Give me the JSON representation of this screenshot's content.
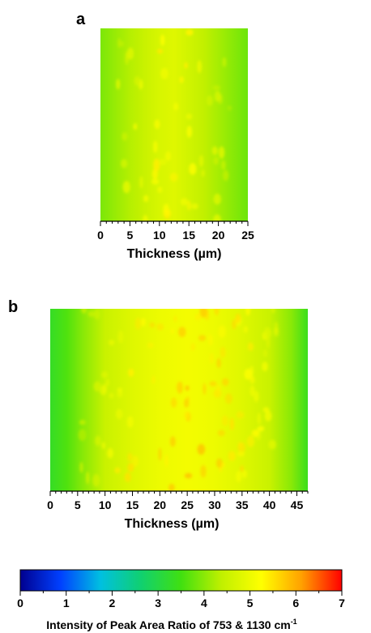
{
  "chart_data": [
    {
      "type": "heatmap",
      "panel_label": "a",
      "xlabel": "Thickness (µm)",
      "xlim": [
        0,
        25
      ],
      "x_ticks": [
        0,
        5,
        10,
        15,
        20,
        25
      ],
      "x_tick_labels": [
        "0",
        "5",
        "10",
        "15",
        "20",
        "25"
      ],
      "z_profile_x": [
        0,
        2.5,
        5,
        7.5,
        10,
        12.5,
        15,
        17.5,
        20,
        22.5,
        25
      ],
      "z_profile": [
        3.9,
        4.1,
        4.3,
        4.5,
        4.7,
        4.8,
        4.6,
        4.4,
        4.2,
        4.0,
        3.8
      ]
    },
    {
      "type": "heatmap",
      "panel_label": "b",
      "xlabel": "Thickness (µm)",
      "xlim": [
        0,
        47
      ],
      "x_ticks": [
        0,
        5,
        10,
        15,
        20,
        25,
        30,
        35,
        40,
        45
      ],
      "x_tick_labels": [
        "0",
        "5",
        "10",
        "15",
        "20",
        "25",
        "30",
        "35",
        "40",
        "45"
      ],
      "z_profile_x": [
        0,
        3,
        6,
        10,
        15,
        20,
        25,
        30,
        35,
        40,
        44,
        47
      ],
      "z_profile": [
        3.3,
        3.6,
        4.0,
        4.5,
        4.8,
        5.0,
        5.1,
        5.0,
        4.8,
        4.5,
        4.0,
        3.4
      ]
    }
  ],
  "colorbar": {
    "title": "Intensity of Peak Area Ratio of 753 & 1130 cm",
    "title_sup": "-1",
    "range": [
      0,
      7
    ],
    "ticks": [
      0,
      1,
      2,
      3,
      4,
      5,
      6,
      7
    ],
    "tick_labels": [
      "0",
      "1",
      "2",
      "3",
      "4",
      "5",
      "6",
      "7"
    ],
    "colormap": [
      "#00008f",
      "#0040ff",
      "#00c0e0",
      "#10d070",
      "#40e010",
      "#c0f000",
      "#ffff00",
      "#ffa000",
      "#ff0000"
    ]
  }
}
